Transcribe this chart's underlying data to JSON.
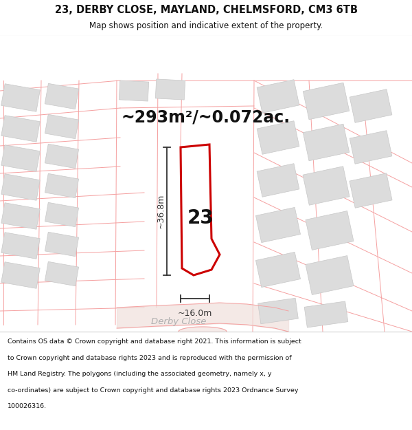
{
  "title_line1": "23, DERBY CLOSE, MAYLAND, CHELMSFORD, CM3 6TB",
  "title_line2": "Map shows position and indicative extent of the property.",
  "area_label": "~293m²/~0.072ac.",
  "number_label": "23",
  "dim_height": "~36.8m",
  "dim_width": "~16.0m",
  "street_label": "Derby Close",
  "footer_lines": [
    "Contains OS data © Crown copyright and database right 2021. This information is subject",
    "to Crown copyright and database rights 2023 and is reproduced with the permission of",
    "HM Land Registry. The polygons (including the associated geometry, namely x, y",
    "co-ordinates) are subject to Crown copyright and database rights 2023 Ordnance Survey",
    "100026316."
  ],
  "map_bg": "#f2f2f2",
  "building_fill": "#dcdcdc",
  "building_edge": "#c8c8c8",
  "plot_fill": "#ffffff",
  "plot_edge": "#cc0000",
  "road_line": "#f5a0a0",
  "road_fill": "#e8c8c0",
  "dim_color": "#333333",
  "street_color": "#b0b0b0",
  "header_bg": "#ffffff",
  "footer_bg": "#ffffff",
  "title_color": "#111111",
  "footer_color": "#111111",
  "header_sep_color": "#cccccc",
  "footer_sep_color": "#cccccc"
}
